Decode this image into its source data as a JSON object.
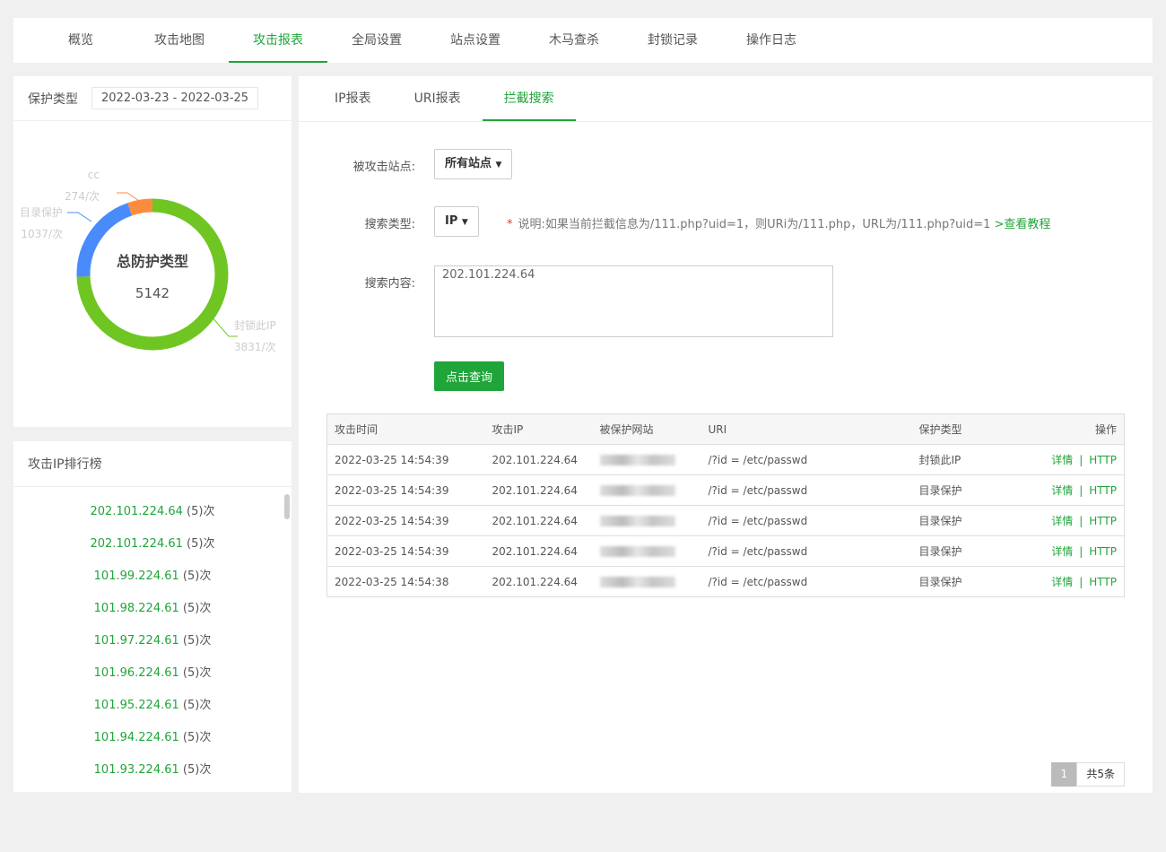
{
  "topnav": [
    "概览",
    "攻击地图",
    "攻击报表",
    "全局设置",
    "站点设置",
    "木马查杀",
    "封锁记录",
    "操作日志"
  ],
  "protect": {
    "title": "保护类型",
    "date_range": "2022-03-23 - 2022-03-25",
    "center_title": "总防护类型",
    "total": "5142",
    "slices": [
      {
        "name": "封锁此IP",
        "label": "3831/次",
        "value": 3831,
        "color": "#6fc622"
      },
      {
        "name": "目录保护",
        "label": "1037/次",
        "value": 1037,
        "color": "#4a8bfc"
      },
      {
        "name": "cc",
        "label": "274/次",
        "value": 274,
        "color": "#fb8c3d"
      }
    ]
  },
  "rank": {
    "title": "攻击IP排行榜",
    "items": [
      {
        "ip": "202.101.224.64",
        "count": "(5)次"
      },
      {
        "ip": "202.101.224.61",
        "count": "(5)次"
      },
      {
        "ip": "101.99.224.61",
        "count": "(5)次"
      },
      {
        "ip": "101.98.224.61",
        "count": "(5)次"
      },
      {
        "ip": "101.97.224.61",
        "count": "(5)次"
      },
      {
        "ip": "101.96.224.61",
        "count": "(5)次"
      },
      {
        "ip": "101.95.224.61",
        "count": "(5)次"
      },
      {
        "ip": "101.94.224.61",
        "count": "(5)次"
      },
      {
        "ip": "101.93.224.61",
        "count": "(5)次"
      }
    ]
  },
  "tabs": [
    "IP报表",
    "URI报表",
    "拦截搜索"
  ],
  "form": {
    "site_label": "被攻击站点:",
    "site_value": "所有站点",
    "type_label": "搜索类型:",
    "type_value": "IP",
    "note": "说明:如果当前拦截信息为/111.php?uid=1，则URi为/111.php，URL为/111.php?uid=1",
    "note_link": ">查看教程",
    "content_label": "搜索内容:",
    "content_value": "202.101.224.64",
    "query_button": "点击查询"
  },
  "table": {
    "headers": [
      "攻击时间",
      "攻击IP",
      "被保护网站",
      "URI",
      "保护类型",
      "操作"
    ],
    "rows": [
      [
        "2022-03-25 14:54:39",
        "202.101.224.64",
        "",
        "/?id = /etc/passwd",
        "封锁此IP"
      ],
      [
        "2022-03-25 14:54:39",
        "202.101.224.64",
        "",
        "/?id = /etc/passwd",
        "目录保护"
      ],
      [
        "2022-03-25 14:54:39",
        "202.101.224.64",
        "",
        "/?id = /etc/passwd",
        "目录保护"
      ],
      [
        "2022-03-25 14:54:39",
        "202.101.224.64",
        "",
        "/?id = /etc/passwd",
        "目录保护"
      ],
      [
        "2022-03-25 14:54:38",
        "202.101.224.64",
        "",
        "/?id = /etc/passwd",
        "目录保护"
      ]
    ],
    "op_detail": "详情",
    "op_sep": "|",
    "op_http": "HTTP"
  },
  "pager": {
    "current": "1",
    "total": "共5条"
  }
}
